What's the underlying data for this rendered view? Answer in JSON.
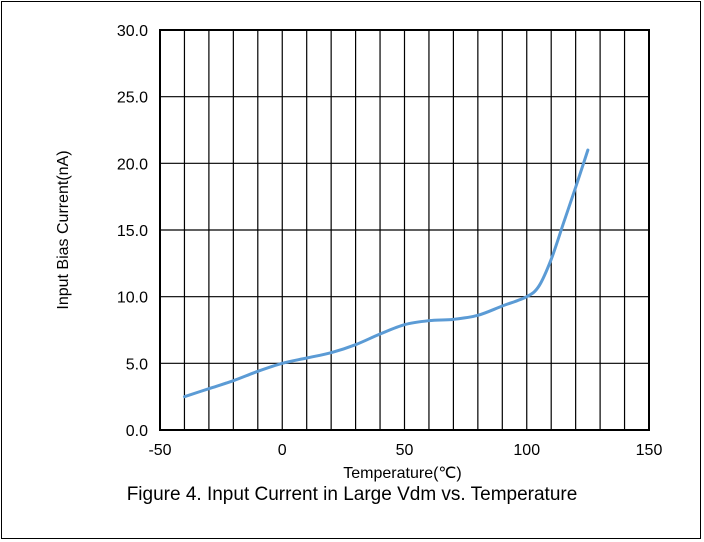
{
  "chart_data": {
    "type": "line",
    "xlabel": "Temperature(℃)",
    "ylabel": "Input Bias Current(nA)",
    "xlim": [
      -50,
      150
    ],
    "ylim": [
      0,
      30
    ],
    "x_ticks": [
      "-50",
      "0",
      "50",
      "100",
      "150"
    ],
    "y_ticks": [
      "0.0",
      "5.0",
      "10.0",
      "15.0",
      "20.0",
      "25.0",
      "30.0"
    ],
    "x_minor_step": 10,
    "y_grid_step": 5,
    "grid": true,
    "series": [
      {
        "color": "#5b9bd5",
        "x": [
          -40,
          -30,
          -20,
          -10,
          0,
          10,
          20,
          30,
          40,
          50,
          60,
          70,
          80,
          90,
          100,
          105,
          110,
          115,
          120,
          125
        ],
        "y": [
          2.5,
          3.1,
          3.7,
          4.4,
          5.0,
          5.4,
          5.8,
          6.4,
          7.2,
          7.9,
          8.2,
          8.3,
          8.6,
          9.3,
          10.0,
          10.8,
          12.8,
          15.5,
          18.2,
          21.0
        ]
      }
    ]
  },
  "caption": "Figure 4. Input Current in Large Vdm vs. Temperature"
}
